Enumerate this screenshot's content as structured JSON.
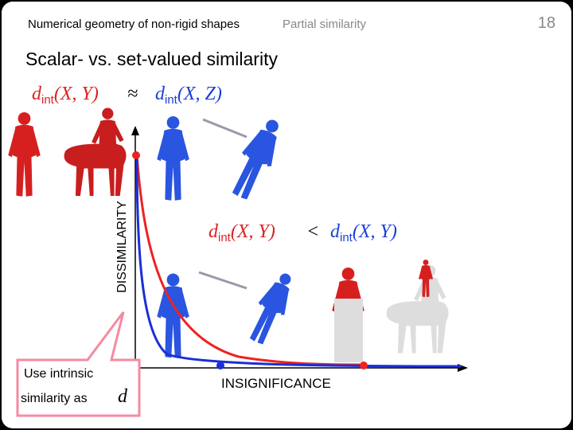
{
  "header": {
    "course": "Numerical geometry of non-rigid shapes",
    "section": "Partial similarity",
    "page_number": "18"
  },
  "title": "Scalar- vs. set-valued similarity",
  "formula_top": {
    "lhs_d": "d",
    "lhs_sub": "int",
    "lhs_args": "(X, Y)",
    "op": "≈",
    "rhs_d": "d",
    "rhs_sub": "int",
    "rhs_args": "(X, Z)"
  },
  "formula_middle": {
    "lhs_d": "d",
    "lhs_sub": "int",
    "lhs_args": "(X, Y)",
    "op": "<",
    "rhs_d": "d",
    "rhs_sub": "int",
    "rhs_args": "(X, Y)"
  },
  "axes": {
    "y_label": "DISSIMILARITY",
    "x_label": "INSIGNIFICANCE"
  },
  "callout": {
    "line1": "Use intrinsic",
    "line2": "similarity as",
    "symbol": "d"
  }
}
